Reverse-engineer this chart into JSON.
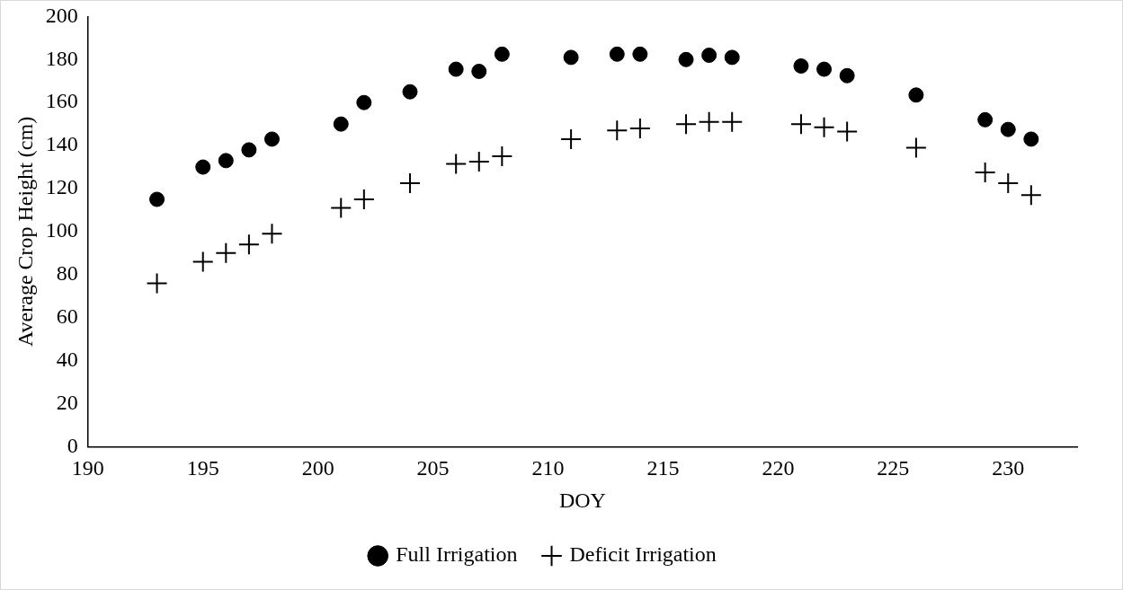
{
  "chart_data": {
    "type": "scatter",
    "xlabel": "DOY",
    "ylabel": "Average Crop Height (cm)",
    "x": [
      193,
      195,
      196,
      197,
      198,
      201,
      202,
      204,
      206,
      207,
      208,
      211,
      213,
      214,
      216,
      217,
      218,
      221,
      222,
      223,
      226,
      229,
      230,
      231
    ],
    "series": [
      {
        "name": "Full Irrigation",
        "color": "#000000",
        "marker": "circle",
        "values": [
          115,
          130,
          133,
          138,
          143,
          150,
          160,
          165,
          175.5,
          174.5,
          182.5,
          181,
          182.5,
          182.5,
          180,
          182,
          181,
          177,
          175.5,
          172.5,
          163.5,
          152,
          147.5,
          143
        ]
      },
      {
        "name": "Deficit Irrigation",
        "color": "#000000",
        "marker": "cross",
        "values": [
          76,
          86,
          90,
          94,
          99,
          111,
          115,
          122.5,
          131.5,
          132.5,
          135,
          143,
          147,
          148,
          150,
          151,
          151,
          150,
          148.5,
          146.5,
          139,
          127.5,
          122.5,
          117
        ]
      }
    ],
    "xlim": [
      190,
      233
    ],
    "xticks": [
      190,
      195,
      200,
      205,
      210,
      215,
      220,
      225,
      230
    ],
    "ylim": [
      0,
      200
    ],
    "yticks": [
      0,
      20,
      40,
      60,
      80,
      100,
      120,
      140,
      160,
      180,
      200
    ],
    "grid": false,
    "legend": "bottom"
  }
}
